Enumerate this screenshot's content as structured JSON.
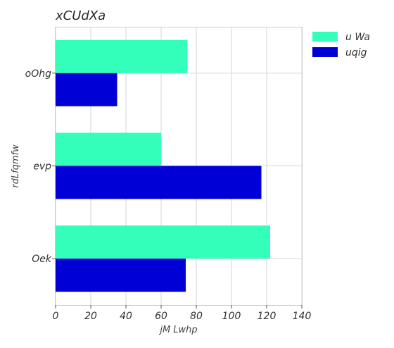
{
  "chart_data": {
    "type": "bar",
    "orientation": "horizontal",
    "title": "xCUdXa",
    "xlabel": "jM Lwhp",
    "ylabel": "rdLfqmfw",
    "categories": [
      "oOhg",
      "evp",
      "Oek"
    ],
    "series": [
      {
        "name": "u Wa",
        "color": "#33ffbb",
        "values": [
          75,
          60,
          122
        ]
      },
      {
        "name": "uqig",
        "color": "#0000d6",
        "values": [
          35,
          117,
          74
        ]
      }
    ],
    "xlim": [
      0,
      140
    ],
    "xticks": [
      "0",
      "20",
      "40",
      "60",
      "80",
      "100",
      "120",
      "140"
    ],
    "grid": true,
    "legend_position": "top-right"
  }
}
